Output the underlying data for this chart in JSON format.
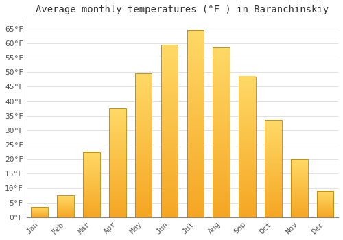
{
  "title": "Average monthly temperatures (°F ) in Baranchinskiy",
  "months": [
    "Jan",
    "Feb",
    "Mar",
    "Apr",
    "May",
    "Jun",
    "Jul",
    "Aug",
    "Sep",
    "Oct",
    "Nov",
    "Dec"
  ],
  "values": [
    3.5,
    7.5,
    22.5,
    37.5,
    49.5,
    59.5,
    64.5,
    58.5,
    48.5,
    33.5,
    20.0,
    9.0
  ],
  "bar_color_bottom": "#F5A623",
  "bar_color_top": "#FFD966",
  "bar_edge_color": "#B8860B",
  "background_color": "#FFFFFF",
  "grid_color": "#DDDDDD",
  "ylim": [
    0,
    68
  ],
  "yticks": [
    0,
    5,
    10,
    15,
    20,
    25,
    30,
    35,
    40,
    45,
    50,
    55,
    60,
    65
  ],
  "ytick_labels": [
    "0°F",
    "5°F",
    "10°F",
    "15°F",
    "20°F",
    "25°F",
    "30°F",
    "35°F",
    "40°F",
    "45°F",
    "50°F",
    "55°F",
    "60°F",
    "65°F"
  ],
  "title_fontsize": 10,
  "tick_fontsize": 8,
  "font_family": "monospace",
  "bar_width": 0.65
}
